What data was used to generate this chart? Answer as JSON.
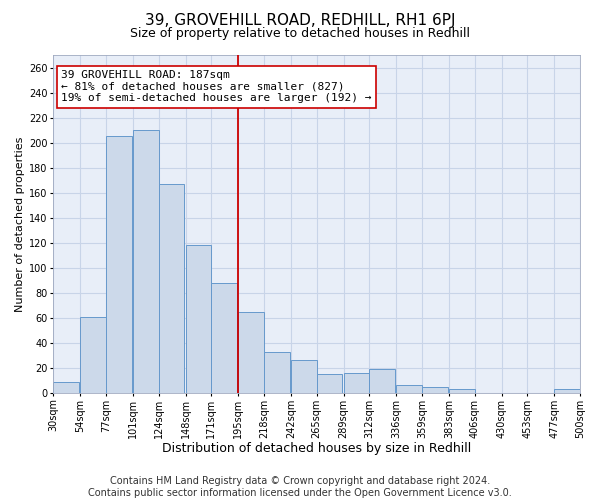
{
  "title": "39, GROVEHILL ROAD, REDHILL, RH1 6PJ",
  "subtitle": "Size of property relative to detached houses in Redhill",
  "xlabel": "Distribution of detached houses by size in Redhill",
  "ylabel": "Number of detached properties",
  "bar_left_edges": [
    30,
    54,
    77,
    101,
    124,
    148,
    171,
    195,
    218,
    242,
    265,
    289,
    312,
    336,
    359,
    383,
    406,
    430,
    453,
    477
  ],
  "bar_heights": [
    9,
    61,
    205,
    210,
    167,
    118,
    88,
    65,
    33,
    26,
    15,
    16,
    19,
    6,
    5,
    3,
    0,
    0,
    0,
    3
  ],
  "bin_width": 23,
  "bar_facecolor": "#ccd9ea",
  "bar_edgecolor": "#6699cc",
  "vline_x": 195,
  "vline_color": "#cc0000",
  "annotation_text": "39 GROVEHILL ROAD: 187sqm\n← 81% of detached houses are smaller (827)\n19% of semi-detached houses are larger (192) →",
  "annotation_box_edgecolor": "#cc0000",
  "annotation_box_facecolor": "white",
  "tick_labels": [
    "30sqm",
    "54sqm",
    "77sqm",
    "101sqm",
    "124sqm",
    "148sqm",
    "171sqm",
    "195sqm",
    "218sqm",
    "242sqm",
    "265sqm",
    "289sqm",
    "312sqm",
    "336sqm",
    "359sqm",
    "383sqm",
    "406sqm",
    "430sqm",
    "453sqm",
    "477sqm",
    "500sqm"
  ],
  "ylim": [
    0,
    270
  ],
  "yticks": [
    0,
    20,
    40,
    60,
    80,
    100,
    120,
    140,
    160,
    180,
    200,
    220,
    240,
    260
  ],
  "grid_color": "#c8d4e8",
  "background_color": "#e8eef8",
  "footer_text": "Contains HM Land Registry data © Crown copyright and database right 2024.\nContains public sector information licensed under the Open Government Licence v3.0.",
  "title_fontsize": 11,
  "subtitle_fontsize": 9,
  "xlabel_fontsize": 9,
  "ylabel_fontsize": 8,
  "tick_fontsize": 7,
  "annotation_fontsize": 8,
  "footer_fontsize": 7
}
